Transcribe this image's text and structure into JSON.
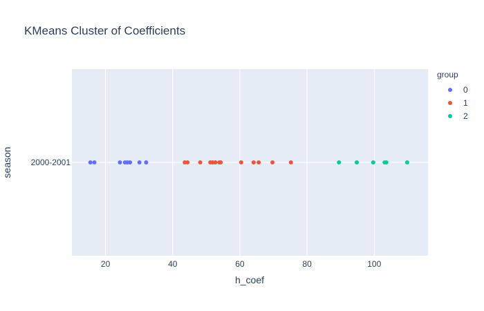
{
  "chart_data": {
    "type": "scatter",
    "title": "KMeans Cluster of Coefficients",
    "xlabel": "h_coef",
    "ylabel": "season",
    "xlim": [
      10,
      116
    ],
    "x_ticks": [
      20,
      40,
      60,
      80,
      100
    ],
    "y_categories": [
      "2000-2001"
    ],
    "grid": true,
    "legend": {
      "title": "group",
      "placement": "top-right"
    },
    "series": [
      {
        "name": "0",
        "color": "#636efa",
        "category": "2000-2001",
        "x": [
          15.5,
          16.7,
          24.3,
          25.8,
          26.5,
          27.3,
          30.1,
          32.1
        ]
      },
      {
        "name": "1",
        "color": "#ef553b",
        "category": "2000-2001",
        "x": [
          43.6,
          44.4,
          48.2,
          51.2,
          51.9,
          52.7,
          53.9,
          54.3,
          60.4,
          64.1,
          65.6,
          69.7,
          75.2
        ]
      },
      {
        "name": "2",
        "color": "#00cc96",
        "category": "2000-2001",
        "x": [
          89.5,
          94.8,
          99.7,
          103.1,
          103.6,
          109.8
        ]
      }
    ]
  }
}
